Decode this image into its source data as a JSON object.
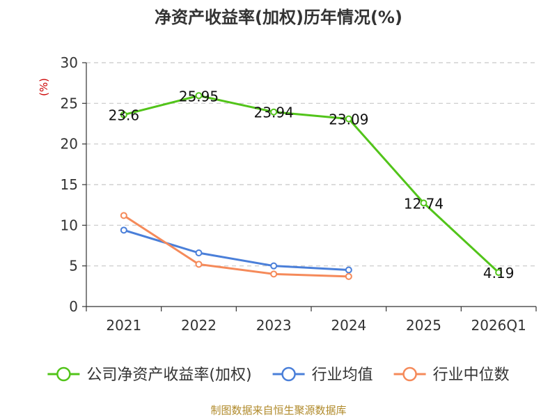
{
  "chart_data": {
    "type": "line",
    "title": "净资产收益率(加权)历年情况(%)",
    "ylabel": "(%)",
    "xlabel": "",
    "ylim": [
      0,
      30
    ],
    "yticks": [
      0,
      5,
      10,
      15,
      20,
      25,
      30
    ],
    "grid": true,
    "legend_position": "bottom",
    "categories": [
      "2021",
      "2022",
      "2023",
      "2024",
      "2025",
      "2026Q1"
    ],
    "series": [
      {
        "name": "公司净资产收益率(加权)",
        "color": "#52c41a",
        "values": [
          23.6,
          25.95,
          23.94,
          23.09,
          12.74,
          4.19
        ],
        "labels": [
          "23.6",
          "25.95",
          "23.94",
          "23.09",
          "12.74",
          "4.19"
        ]
      },
      {
        "name": "行业均值",
        "color": "#4a7fd9",
        "values": [
          9.4,
          6.6,
          5.0,
          4.5,
          null,
          null
        ]
      },
      {
        "name": "行业中位数",
        "color": "#f58a5a",
        "values": [
          11.2,
          5.2,
          4.0,
          3.7,
          null,
          null
        ]
      }
    ],
    "source": "制图数据来自恒生聚源数据库"
  }
}
